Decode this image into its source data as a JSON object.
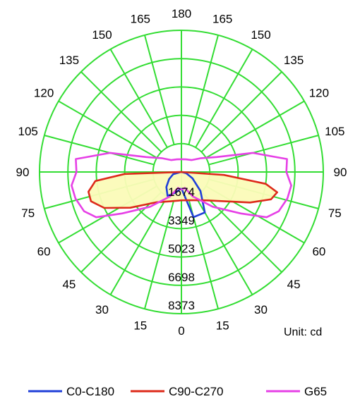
{
  "chart_data": {
    "type": "polar",
    "unit_label": "Unit: cd",
    "rmax": 10000,
    "radial_ticks": [
      1674,
      3349,
      5023,
      6698,
      8373
    ],
    "angle_labels_left": [
      "0",
      "15",
      "30",
      "45",
      "60",
      "75",
      "90",
      "105",
      "120",
      "135",
      "150",
      "165",
      "180"
    ],
    "angle_labels_right": [
      "15",
      "30",
      "45",
      "60",
      "75",
      "90",
      "105",
      "120",
      "135",
      "150",
      "165"
    ],
    "grid": true,
    "colors": {
      "grid": "#33dd33",
      "fill": "#fbfbb8"
    },
    "series": [
      {
        "name": "C0-C180",
        "color": "#1f3fd8",
        "points": [
          [
            0,
            1150
          ],
          [
            -15,
            1500
          ],
          [
            -30,
            1950
          ],
          [
            -45,
            1500
          ],
          [
            -60,
            1000
          ],
          [
            -75,
            600
          ],
          [
            -90,
            40
          ],
          [
            -105,
            0
          ],
          [
            90,
            0
          ],
          [
            75,
            350
          ],
          [
            60,
            900
          ],
          [
            45,
            1900
          ],
          [
            30,
            3300
          ],
          [
            15,
            3300
          ],
          [
            0,
            1150
          ]
        ]
      },
      {
        "name": "C90-C270",
        "color": "#dd2a1a",
        "points": [
          [
            0,
            2000
          ],
          [
            -20,
            2200
          ],
          [
            -40,
            2800
          ],
          [
            -55,
            4400
          ],
          [
            -65,
            6000
          ],
          [
            -72,
            6700
          ],
          [
            -78,
            6700
          ],
          [
            -84,
            6100
          ],
          [
            -88,
            4000
          ],
          [
            -90,
            0
          ],
          [
            90,
            0
          ],
          [
            86,
            3000
          ],
          [
            82,
            6000
          ],
          [
            78,
            6900
          ],
          [
            73,
            6600
          ],
          [
            66,
            5300
          ],
          [
            56,
            3700
          ],
          [
            42,
            2700
          ],
          [
            25,
            2200
          ],
          [
            0,
            2000
          ]
        ]
      },
      {
        "name": "G65",
        "color": "#e640e6",
        "points": [
          [
            0,
            1250
          ],
          [
            -12,
            1150
          ],
          [
            -25,
            1900
          ],
          [
            -42,
            3300
          ],
          [
            -55,
            5100
          ],
          [
            -62,
            6800
          ],
          [
            -68,
            7400
          ],
          [
            -76,
            7700
          ],
          [
            -83,
            7800
          ],
          [
            -90,
            7400
          ],
          [
            -97,
            7500
          ],
          [
            -105,
            5200
          ],
          [
            -113,
            2700
          ],
          [
            -125,
            1700
          ],
          [
            -140,
            1100
          ],
          [
            -160,
            950
          ],
          [
            -180,
            900
          ],
          [
            180,
            900
          ],
          [
            160,
            950
          ],
          [
            140,
            1100
          ],
          [
            125,
            1700
          ],
          [
            113,
            2700
          ],
          [
            105,
            5200
          ],
          [
            97,
            7500
          ],
          [
            90,
            7400
          ],
          [
            83,
            7800
          ],
          [
            76,
            7700
          ],
          [
            68,
            7400
          ],
          [
            62,
            6800
          ],
          [
            55,
            5100
          ],
          [
            42,
            3300
          ],
          [
            25,
            1900
          ],
          [
            12,
            1150
          ],
          [
            0,
            1250
          ]
        ]
      }
    ]
  }
}
